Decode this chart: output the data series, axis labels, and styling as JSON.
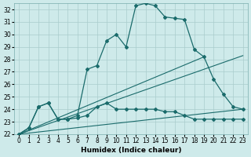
{
  "xlabel": "Humidex (Indice chaleur)",
  "bg_color": "#ceeaea",
  "grid_color": "#aacccc",
  "line_color": "#1a6b6b",
  "xlim": [
    -0.5,
    23.5
  ],
  "ylim": [
    22,
    32.5
  ],
  "yticks": [
    22,
    23,
    24,
    25,
    26,
    27,
    28,
    29,
    30,
    31,
    32
  ],
  "xticks": [
    0,
    1,
    2,
    3,
    4,
    5,
    6,
    7,
    8,
    9,
    10,
    11,
    12,
    13,
    14,
    15,
    16,
    17,
    18,
    19,
    20,
    21,
    22,
    23
  ],
  "curve1_x": [
    0,
    1,
    2,
    3,
    4,
    5,
    6,
    7,
    8,
    9,
    10,
    11,
    12,
    13,
    14,
    15,
    16,
    17,
    18,
    19,
    20,
    21,
    22,
    23
  ],
  "curve1_y": [
    22.0,
    22.5,
    24.2,
    24.5,
    23.2,
    23.2,
    23.5,
    27.2,
    27.5,
    29.5,
    30.0,
    29.0,
    32.3,
    32.5,
    32.3,
    31.4,
    31.3,
    31.2,
    28.8,
    28.2,
    26.4,
    25.2,
    24.2,
    24.0
  ],
  "curve2_x": [
    0,
    1,
    2,
    3,
    4,
    5,
    6,
    7,
    8,
    9,
    10,
    11,
    12,
    13,
    14,
    15,
    16,
    17,
    18,
    19,
    20,
    21,
    22,
    23
  ],
  "curve2_y": [
    22.0,
    22.5,
    24.2,
    24.5,
    23.2,
    23.2,
    23.3,
    23.5,
    24.2,
    24.5,
    24.0,
    24.0,
    24.0,
    24.0,
    24.0,
    23.8,
    23.8,
    23.5,
    23.2,
    23.2,
    23.2,
    23.2,
    23.2,
    23.2
  ],
  "line3_x": [
    0,
    23
  ],
  "line3_y": [
    22.0,
    28.3
  ],
  "line4_x": [
    0,
    19
  ],
  "line4_y": [
    22.0,
    28.2
  ],
  "line5_x": [
    0,
    23
  ],
  "line5_y": [
    22.0,
    24.0
  ]
}
